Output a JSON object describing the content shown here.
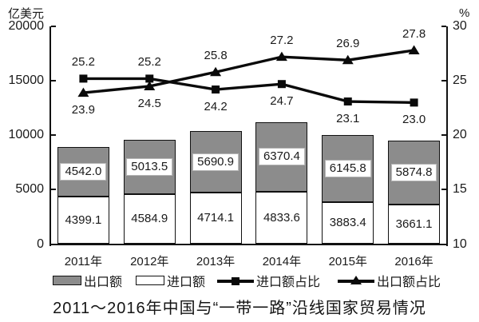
{
  "chart_data": {
    "type": "bar",
    "subtype": "stacked-bars-with-lines",
    "title": "2011～2016年中国与“一带一路”沿线国家贸易情况",
    "categories": [
      "2011年",
      "2012年",
      "2013年",
      "2014年",
      "2015年",
      "2016年"
    ],
    "bar_series": [
      {
        "name": "进口额",
        "role": "import-amount",
        "stack_position": "bottom",
        "color": "#ffffff",
        "axis": "left",
        "values": [
          4399.1,
          4584.9,
          4714.1,
          4833.6,
          3883.4,
          3661.1
        ]
      },
      {
        "name": "出口额",
        "role": "export-amount",
        "stack_position": "top",
        "color": "#8c8c8c",
        "axis": "left",
        "values": [
          4542.0,
          5013.5,
          5690.9,
          6370.4,
          6145.8,
          5874.8
        ]
      }
    ],
    "line_series": [
      {
        "name": "进口额占比",
        "role": "import-share",
        "marker": "square",
        "axis": "right",
        "values": [
          25.2,
          25.2,
          24.2,
          24.7,
          23.1,
          23.0
        ]
      },
      {
        "name": "出口额占比",
        "role": "export-share",
        "marker": "triangle",
        "axis": "right",
        "values": [
          23.9,
          24.5,
          25.8,
          27.2,
          26.9,
          27.8
        ]
      }
    ],
    "left_axis": {
      "label": "亿美元",
      "min": 0,
      "max": 20000,
      "ticks": [
        20000,
        15000,
        10000,
        5000,
        0
      ]
    },
    "right_axis": {
      "label": "%",
      "min": 10,
      "max": 30,
      "ticks": [
        30,
        25,
        20,
        15,
        10
      ]
    },
    "legend": [
      {
        "label": "出口额",
        "swatch": "bar-gray"
      },
      {
        "label": "进口额",
        "swatch": "bar-white"
      },
      {
        "label": "进口额占比",
        "swatch": "line-square"
      },
      {
        "label": "出口额占比",
        "swatch": "line-triangle"
      }
    ],
    "grid": false,
    "legend_position": "bottom",
    "colors": {
      "bar_export": "#8c8c8c",
      "bar_import": "#ffffff",
      "line": "#0a0a0a",
      "axis": "#111111",
      "text": "#1a1a1a"
    }
  }
}
